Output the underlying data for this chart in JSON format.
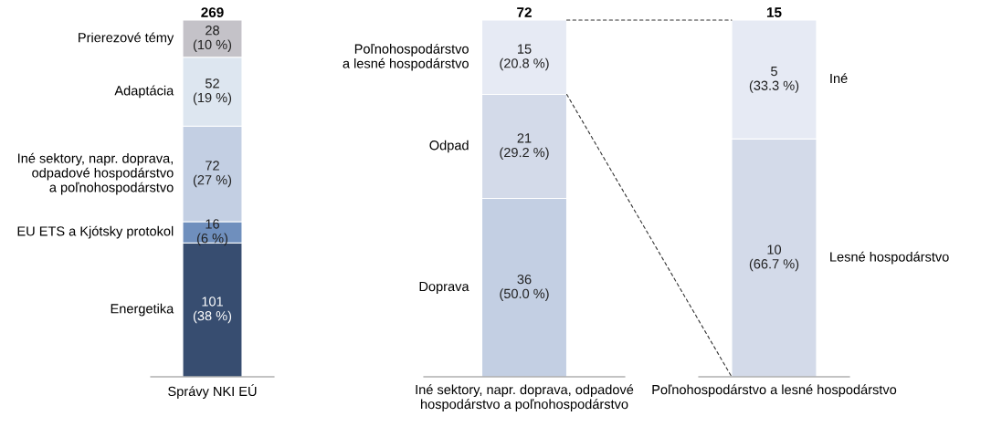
{
  "chart_data": [
    {
      "type": "bar",
      "stacked": true,
      "categories": [
        "Správy NKI EÚ"
      ],
      "ylim": [
        0,
        269
      ],
      "totals": [
        "269"
      ],
      "series": [
        {
          "name": "Energetika",
          "color": "#374d70",
          "values": [
            101
          ],
          "value_labels": [
            "101\n(38 %)"
          ]
        },
        {
          "name": "EU ETS a Kjótsky protokol",
          "color": "#6f8fbd",
          "values": [
            16
          ],
          "value_labels": [
            "16\n(6 %)"
          ]
        },
        {
          "name": "Iné sektory, napr. doprava,\nodpadové hospodárstvo\na poľnohospodárstvo",
          "color": "#c3cfe3",
          "values": [
            72
          ],
          "value_labels": [
            "72\n(27 %)"
          ]
        },
        {
          "name": "Adaptácia",
          "color": "#dde6f0",
          "values": [
            52
          ],
          "value_labels": [
            "52\n(19 %)"
          ]
        },
        {
          "name": "Prierezové témy",
          "color": "#c4c2c8",
          "values": [
            28
          ],
          "value_labels": [
            "28\n(10 %)"
          ]
        }
      ]
    },
    {
      "type": "bar",
      "stacked": true,
      "categories": [
        "Iné sektory, napr. doprava, odpadové\nhospodárstvo a poľnohospodárstvo"
      ],
      "ylim": [
        0,
        72
      ],
      "totals": [
        "72"
      ],
      "series": [
        {
          "name": "Doprava",
          "color": "#c3cfe3",
          "values": [
            36
          ],
          "value_labels": [
            "36\n(50.0 %)"
          ]
        },
        {
          "name": "Odpad",
          "color": "#d3dae9",
          "values": [
            21
          ],
          "value_labels": [
            "21\n(29.2 %)"
          ]
        },
        {
          "name": "Poľnohospodárstvo\na lesné hospodárstvo",
          "color": "#e6eaf4",
          "values": [
            15
          ],
          "value_labels": [
            "15\n(20.8 %)"
          ]
        }
      ]
    },
    {
      "type": "bar",
      "stacked": true,
      "categories": [
        "Poľnohospodárstvo a lesné hospodárstvo"
      ],
      "ylim": [
        0,
        15
      ],
      "totals": [
        "15"
      ],
      "series": [
        {
          "name": "Lesné hospodárstvo",
          "color": "#d3dae9",
          "values": [
            10
          ],
          "value_labels": [
            "10\n(66.7 %)"
          ]
        },
        {
          "name": "Iné",
          "color": "#e6eaf4",
          "values": [
            5
          ],
          "value_labels": [
            "5\n(33.3 %)"
          ]
        }
      ]
    }
  ]
}
